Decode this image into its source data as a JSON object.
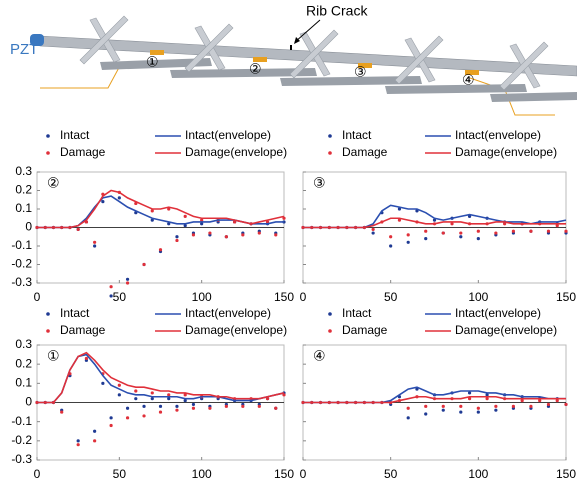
{
  "diagram": {
    "pzt": "PZT",
    "crack": "Rib Crack",
    "sensors": [
      "①",
      "②",
      "③",
      "④"
    ]
  },
  "chart_data": [
    {
      "type": "line",
      "label": "②",
      "xlim": [
        0,
        150
      ],
      "xticks": [
        0,
        50,
        100,
        150
      ],
      "ylim": [
        -0.3,
        0.3
      ],
      "yticks": [
        0.3,
        0.2,
        0.1,
        0,
        -0.1,
        -0.2,
        -0.3
      ],
      "ytick_labels": true,
      "x": [
        0,
        5,
        10,
        15,
        20,
        25,
        30,
        35,
        40,
        45,
        50,
        55,
        60,
        65,
        70,
        75,
        80,
        85,
        90,
        95,
        100,
        105,
        110,
        115,
        120,
        125,
        130,
        135,
        140,
        145,
        150
      ],
      "series": [
        {
          "name": "Intact",
          "color": "#1f3a93",
          "style": "dots",
          "values": [
            0,
            0,
            0,
            0,
            0,
            -0.01,
            0.03,
            -0.1,
            0.14,
            -0.37,
            0.16,
            -0.28,
            0.08,
            -0.2,
            0.04,
            -0.13,
            0.02,
            -0.05,
            0.01,
            -0.03,
            0.02,
            -0.04,
            0.03,
            -0.05,
            0.03,
            -0.03,
            0.02,
            -0.02,
            0.02,
            -0.03,
            0.03
          ]
        },
        {
          "name": "Damage",
          "color": "#e0303a",
          "style": "dots",
          "values": [
            0,
            0,
            0,
            0,
            0,
            -0.01,
            0.03,
            -0.08,
            0.18,
            -0.32,
            0.19,
            -0.3,
            0.13,
            -0.2,
            0.09,
            -0.12,
            0.1,
            -0.07,
            0.06,
            -0.04,
            0.04,
            -0.03,
            0.04,
            -0.05,
            0.03,
            -0.04,
            0.02,
            -0.03,
            0.03,
            -0.04,
            0.05
          ]
        },
        {
          "name": "Intact(envelope)",
          "color": "#2b4fb0",
          "style": "line",
          "values": [
            0,
            0,
            0,
            0,
            0,
            0.01,
            0.05,
            0.11,
            0.16,
            0.17,
            0.14,
            0.11,
            0.09,
            0.07,
            0.05,
            0.04,
            0.03,
            0.02,
            0.02,
            0.03,
            0.03,
            0.03,
            0.04,
            0.04,
            0.04,
            0.03,
            0.02,
            0.02,
            0.02,
            0.03,
            0.03
          ]
        },
        {
          "name": "Damage(envelope)",
          "color": "#e0303a",
          "style": "line",
          "values": [
            0,
            0,
            0,
            0,
            0,
            0.01,
            0.04,
            0.1,
            0.17,
            0.2,
            0.19,
            0.16,
            0.14,
            0.12,
            0.1,
            0.1,
            0.11,
            0.1,
            0.08,
            0.06,
            0.05,
            0.05,
            0.05,
            0.05,
            0.04,
            0.03,
            0.02,
            0.03,
            0.04,
            0.05,
            0.06
          ]
        }
      ]
    },
    {
      "type": "line",
      "label": "③",
      "xlim": [
        0,
        150
      ],
      "xticks": [
        0,
        50,
        100,
        150
      ],
      "ylim": [
        -0.3,
        0.3
      ],
      "yticks": [
        0.3,
        0.2,
        0.1,
        0,
        -0.1,
        -0.2,
        -0.3
      ],
      "ytick_labels": false,
      "x": [
        0,
        5,
        10,
        15,
        20,
        25,
        30,
        35,
        40,
        45,
        50,
        55,
        60,
        65,
        70,
        75,
        80,
        85,
        90,
        95,
        100,
        105,
        110,
        115,
        120,
        125,
        130,
        135,
        140,
        145,
        150
      ],
      "series": [
        {
          "name": "Intact",
          "color": "#1f3a93",
          "style": "dots",
          "values": [
            0,
            0,
            0,
            0,
            0,
            0,
            0,
            0,
            -0.03,
            0.08,
            -0.1,
            0.1,
            -0.08,
            0.09,
            -0.06,
            0.04,
            -0.03,
            0.05,
            -0.05,
            0.06,
            -0.06,
            0.05,
            -0.04,
            0.03,
            -0.03,
            0.02,
            -0.02,
            0.03,
            -0.03,
            0.02,
            -0.03
          ]
        },
        {
          "name": "Damage",
          "color": "#e0303a",
          "style": "dots",
          "values": [
            0,
            0,
            0,
            0,
            0,
            0,
            0,
            0,
            -0.01,
            0.03,
            -0.05,
            0.04,
            -0.04,
            0.03,
            -0.02,
            0.02,
            -0.03,
            0.02,
            -0.03,
            0.02,
            -0.02,
            0.02,
            -0.03,
            0.02,
            -0.02,
            0.02,
            -0.02,
            0.02,
            -0.02,
            0.01,
            -0.02
          ]
        },
        {
          "name": "Intact(envelope)",
          "color": "#2b4fb0",
          "style": "line",
          "values": [
            0,
            0,
            0,
            0,
            0,
            0,
            0,
            0,
            0.02,
            0.09,
            0.12,
            0.11,
            0.1,
            0.1,
            0.08,
            0.05,
            0.04,
            0.05,
            0.06,
            0.07,
            0.06,
            0.05,
            0.04,
            0.03,
            0.03,
            0.03,
            0.02,
            0.03,
            0.03,
            0.03,
            0.04
          ]
        },
        {
          "name": "Damage(envelope)",
          "color": "#e0303a",
          "style": "line",
          "values": [
            0,
            0,
            0,
            0,
            0,
            0,
            0,
            0,
            0.01,
            0.03,
            0.05,
            0.05,
            0.04,
            0.03,
            0.02,
            0.02,
            0.03,
            0.03,
            0.03,
            0.02,
            0.02,
            0.02,
            0.03,
            0.03,
            0.02,
            0.02,
            0.02,
            0.02,
            0.02,
            0.02,
            0.02
          ]
        }
      ]
    },
    {
      "type": "line",
      "label": "①",
      "xlim": [
        0,
        150
      ],
      "xticks": [
        0,
        50,
        100,
        150
      ],
      "ylim": [
        -0.3,
        0.3
      ],
      "yticks": [
        0.3,
        0.2,
        0.1,
        0,
        -0.1,
        -0.2,
        -0.3
      ],
      "ytick_labels": true,
      "x": [
        0,
        5,
        10,
        15,
        20,
        25,
        30,
        35,
        40,
        45,
        50,
        55,
        60,
        65,
        70,
        75,
        80,
        85,
        90,
        95,
        100,
        105,
        110,
        115,
        120,
        125,
        130,
        135,
        140,
        145,
        150
      ],
      "series": [
        {
          "name": "Intact",
          "color": "#1f3a93",
          "style": "dots",
          "values": [
            0,
            0,
            0,
            -0.04,
            0.14,
            -0.2,
            0.22,
            -0.15,
            0.1,
            -0.08,
            0.04,
            -0.03,
            0.02,
            -0.02,
            0.02,
            -0.02,
            0.02,
            -0.02,
            0.01,
            -0.01,
            0.02,
            -0.02,
            0.02,
            -0.01,
            0.01,
            -0.01,
            0.01,
            -0.01,
            0.02,
            -0.03,
            0.05
          ]
        },
        {
          "name": "Damage",
          "color": "#e0303a",
          "style": "dots",
          "values": [
            0,
            0,
            0,
            -0.05,
            0.15,
            -0.22,
            0.23,
            -0.2,
            0.15,
            -0.12,
            0.09,
            -0.08,
            0.06,
            -0.07,
            0.05,
            -0.05,
            0.04,
            -0.04,
            0.04,
            -0.03,
            0.03,
            -0.03,
            0.03,
            -0.02,
            0.02,
            -0.02,
            0.02,
            -0.02,
            0.02,
            -0.03,
            0.04
          ]
        },
        {
          "name": "Intact(envelope)",
          "color": "#2b4fb0",
          "style": "line",
          "values": [
            0,
            0,
            0,
            0.05,
            0.17,
            0.24,
            0.25,
            0.2,
            0.14,
            0.09,
            0.07,
            0.05,
            0.04,
            0.04,
            0.03,
            0.03,
            0.03,
            0.03,
            0.02,
            0.02,
            0.03,
            0.03,
            0.03,
            0.02,
            0.01,
            0.01,
            0.01,
            0.02,
            0.03,
            0.04,
            0.05
          ]
        },
        {
          "name": "Damage(envelope)",
          "color": "#e0303a",
          "style": "line",
          "values": [
            0,
            0,
            0,
            0.05,
            0.17,
            0.24,
            0.26,
            0.22,
            0.17,
            0.13,
            0.11,
            0.09,
            0.08,
            0.08,
            0.07,
            0.06,
            0.06,
            0.05,
            0.05,
            0.04,
            0.04,
            0.04,
            0.03,
            0.03,
            0.02,
            0.02,
            0.02,
            0.02,
            0.03,
            0.04,
            0.05
          ]
        }
      ]
    },
    {
      "type": "line",
      "label": "④",
      "xlim": [
        0,
        150
      ],
      "xticks": [
        0,
        50,
        100,
        150
      ],
      "ylim": [
        -0.3,
        0.3
      ],
      "yticks": [
        0.3,
        0.2,
        0.1,
        0,
        -0.1,
        -0.2,
        -0.3
      ],
      "ytick_labels": false,
      "x": [
        0,
        5,
        10,
        15,
        20,
        25,
        30,
        35,
        40,
        45,
        50,
        55,
        60,
        65,
        70,
        75,
        80,
        85,
        90,
        95,
        100,
        105,
        110,
        115,
        120,
        125,
        130,
        135,
        140,
        145,
        150
      ],
      "series": [
        {
          "name": "Intact",
          "color": "#1f3a93",
          "style": "dots",
          "values": [
            0,
            0,
            0,
            0,
            0,
            0,
            0,
            0,
            0,
            0,
            -0.01,
            0.03,
            -0.08,
            0.07,
            -0.06,
            0.04,
            -0.04,
            0.05,
            -0.05,
            0.05,
            -0.05,
            0.04,
            -0.04,
            0.04,
            -0.03,
            0.03,
            -0.03,
            0.02,
            -0.02,
            0.02,
            -0.01
          ]
        },
        {
          "name": "Damage",
          "color": "#e0303a",
          "style": "dots",
          "values": [
            0,
            0,
            0,
            0,
            0,
            0,
            0,
            0,
            0,
            0,
            0,
            0.01,
            -0.03,
            0.03,
            -0.02,
            0.02,
            -0.02,
            0.02,
            -0.02,
            0.02,
            -0.03,
            0.02,
            -0.02,
            0.02,
            -0.02,
            0.01,
            -0.02,
            0.01,
            -0.01,
            0.01,
            -0.01
          ]
        },
        {
          "name": "Intact(envelope)",
          "color": "#2b4fb0",
          "style": "line",
          "values": [
            0,
            0,
            0,
            0,
            0,
            0,
            0,
            0,
            0,
            0,
            0.01,
            0.04,
            0.07,
            0.08,
            0.06,
            0.04,
            0.04,
            0.05,
            0.06,
            0.06,
            0.06,
            0.05,
            0.05,
            0.04,
            0.04,
            0.03,
            0.03,
            0.03,
            0.02,
            0.02,
            0.02
          ]
        },
        {
          "name": "Damage(envelope)",
          "color": "#e0303a",
          "style": "line",
          "values": [
            0,
            0,
            0,
            0,
            0,
            0,
            0,
            0,
            0,
            0,
            0,
            0.01,
            0.02,
            0.03,
            0.03,
            0.02,
            0.02,
            0.02,
            0.02,
            0.03,
            0.03,
            0.03,
            0.03,
            0.02,
            0.02,
            0.02,
            0.02,
            0.02,
            0.02,
            0.02,
            0.02
          ]
        }
      ]
    }
  ]
}
